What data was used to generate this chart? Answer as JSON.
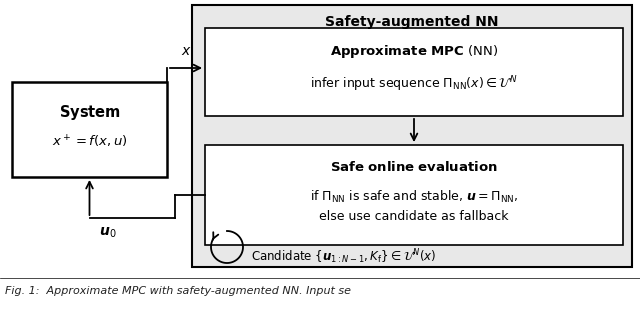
{
  "bg_color": "#ffffff",
  "outer_fc": "#e8e8e8",
  "inner_fc": "#ffffff",
  "text_color": "#000000",
  "safety_nn_title": "Safety-augmented NN",
  "approx_mpc_title_bold": "Approximate MPC",
  "approx_mpc_title_normal": " (NN)",
  "approx_mpc_body": "infer input sequence $\\Pi_{\\mathrm{NN}}(x) \\in \\mathcal{U}^N$",
  "safe_eval_title": "Safe online evaluation",
  "safe_eval_body1": "if $\\Pi_{\\mathrm{NN}}$ is safe and stable, $\\boldsymbol{u} = \\Pi_{\\mathrm{NN}}$,",
  "safe_eval_body2": "else use candidate as fallback",
  "candidate_text": "Candidate $\\{\\boldsymbol{u}_{1:N-1}, K_{\\mathrm{f}}\\} \\in \\mathcal{U}^N(x)$",
  "system_title": "System",
  "system_body": "$x^+ = f(x, u)$",
  "x_label": "$x$",
  "u0_label": "$\\boldsymbol{u}_0$",
  "fig_caption_bold": "Fig. 1:",
  "fig_caption_normal": " Approximate MPC with safety-augmented NN. Input se"
}
